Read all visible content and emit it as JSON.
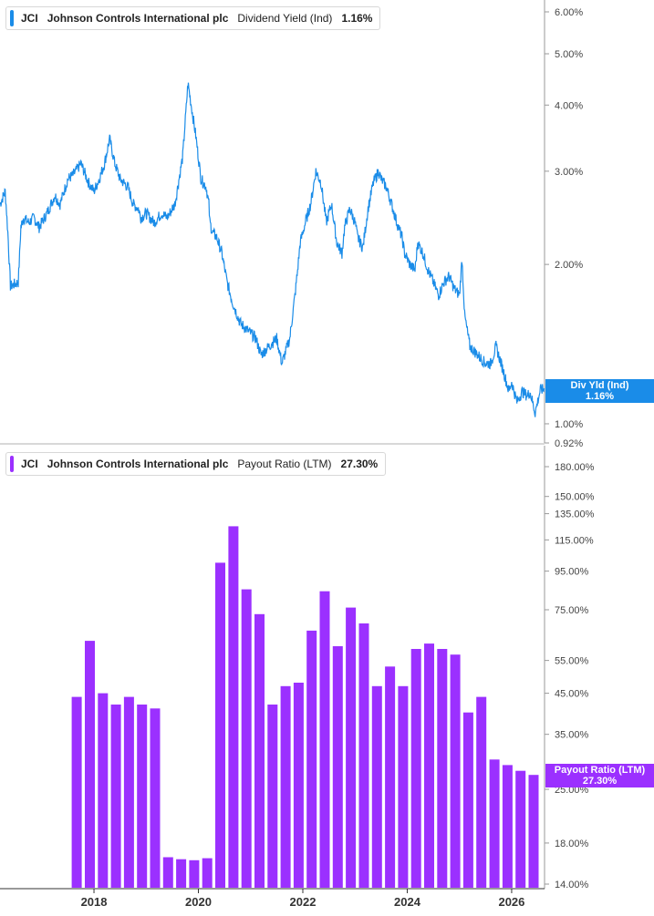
{
  "colors": {
    "line": "#1a8ce8",
    "bar": "#9b30ff",
    "badge_yield": "#1a8ce8",
    "badge_payout": "#9b30ff",
    "axis": "#999999",
    "frame": "#b0b0b0"
  },
  "top_legend": {
    "ticker": "JCI",
    "company": "Johnson Controls International plc",
    "metric": "Dividend Yield (Ind)",
    "value": "1.16%"
  },
  "bottom_legend": {
    "ticker": "JCI",
    "company": "Johnson Controls International plc",
    "metric": "Payout Ratio (LTM)",
    "value": "27.30%"
  },
  "top_badge": {
    "label": "Div Yld (Ind)",
    "value": "1.16%"
  },
  "bottom_badge": {
    "label": "Payout Ratio (LTM)",
    "value": "27.30%"
  },
  "chart_data": [
    {
      "type": "line",
      "series_name": "Dividend Yield (Ind)",
      "scale": "log",
      "x_range": [
        2016.2,
        2026.63
      ],
      "y_range": [
        0.92,
        6.5
      ],
      "y_ticks": [
        6.0,
        5.0,
        4.0,
        3.0,
        2.0,
        1.0,
        0.92
      ],
      "y_tick_labels": [
        "6.00%",
        "5.00%",
        "4.00%",
        "3.00%",
        "2.00%",
        "1.00%",
        "0.92%"
      ],
      "x": [
        2016.2,
        2016.3,
        2016.35,
        2016.4,
        2016.55,
        2016.6,
        2016.65,
        2016.75,
        2016.85,
        2016.95,
        2017.1,
        2017.25,
        2017.35,
        2017.5,
        2017.6,
        2017.75,
        2017.9,
        2018.0,
        2018.1,
        2018.2,
        2018.3,
        2018.4,
        2018.5,
        2018.65,
        2018.75,
        2018.85,
        2018.9,
        2019.0,
        2019.15,
        2019.3,
        2019.4,
        2019.55,
        2019.7,
        2019.8,
        2019.95,
        2020.05,
        2020.15,
        2020.2,
        2020.22,
        2020.27,
        2020.35,
        2020.45,
        2020.55,
        2020.65,
        2020.8,
        2020.95,
        2021.1,
        2021.2,
        2021.35,
        2021.5,
        2021.6,
        2021.75,
        2021.85,
        2021.9,
        2021.95,
        2022.05,
        2022.15,
        2022.25,
        2022.35,
        2022.45,
        2022.5,
        2022.55,
        2022.65,
        2022.75,
        2022.8,
        2022.9,
        2023.0,
        2023.05,
        2023.15,
        2023.25,
        2023.35,
        2023.45,
        2023.5,
        2023.6,
        2023.7,
        2023.8,
        2023.9,
        2023.95,
        2024.05,
        2024.15,
        2024.2,
        2024.3,
        2024.4,
        2024.5,
        2024.6,
        2024.7,
        2024.8,
        2024.9,
        2025.0,
        2025.05,
        2025.1,
        2025.2,
        2025.35,
        2025.5,
        2025.6,
        2025.7,
        2025.85,
        2025.95,
        2026.0,
        2026.1,
        2026.2,
        2026.3,
        2026.35,
        2026.45,
        2026.55,
        2026.63
      ],
      "y": [
        2.6,
        2.75,
        2.3,
        1.82,
        1.85,
        2.35,
        2.45,
        2.4,
        2.45,
        2.35,
        2.5,
        2.7,
        2.6,
        2.9,
        2.95,
        3.1,
        2.85,
        2.75,
        2.9,
        3.1,
        3.45,
        3.1,
        2.9,
        2.8,
        2.6,
        2.55,
        2.45,
        2.5,
        2.4,
        2.5,
        2.45,
        2.6,
        3.2,
        4.4,
        3.5,
        2.9,
        2.8,
        2.6,
        2.4,
        2.3,
        2.25,
        2.1,
        1.85,
        1.7,
        1.55,
        1.5,
        1.45,
        1.35,
        1.4,
        1.45,
        1.3,
        1.45,
        1.75,
        1.95,
        2.2,
        2.4,
        2.6,
        3.0,
        2.85,
        2.4,
        2.5,
        2.6,
        2.2,
        2.1,
        2.35,
        2.55,
        2.4,
        2.25,
        2.15,
        2.55,
        2.85,
        3.0,
        2.9,
        2.8,
        2.6,
        2.4,
        2.25,
        2.1,
        2.0,
        1.95,
        2.2,
        2.1,
        1.95,
        1.85,
        1.75,
        1.85,
        1.9,
        1.8,
        1.75,
        2.05,
        1.6,
        1.4,
        1.35,
        1.3,
        1.3,
        1.4,
        1.25,
        1.15,
        1.2,
        1.1,
        1.15,
        1.13,
        1.15,
        1.05,
        1.16,
        1.16
      ]
    },
    {
      "type": "bar",
      "series_name": "Payout Ratio (LTM)",
      "scale": "log",
      "x_range": [
        2016.2,
        2026.63
      ],
      "y_range": [
        13.9,
        200
      ],
      "y_ticks": [
        180,
        150,
        135,
        115,
        95,
        75,
        55,
        45,
        35,
        25,
        18,
        14
      ],
      "y_tick_labels": [
        "180.00%",
        "150.00%",
        "135.00%",
        "115.00%",
        "95.00%",
        "75.00%",
        "55.00%",
        "45.00%",
        "35.00%",
        "25.00%",
        "18.00%",
        "14.00%"
      ],
      "x_tick_labels": [
        "2018",
        "2020",
        "2022",
        "2024",
        "2026"
      ],
      "x_tick_values": [
        2018.0,
        2020.0,
        2022.0,
        2024.0,
        2026.0
      ],
      "x": [
        2017.67,
        2017.92,
        2018.17,
        2018.42,
        2018.67,
        2018.92,
        2019.17,
        2019.42,
        2019.67,
        2019.92,
        2020.17,
        2020.42,
        2020.67,
        2020.92,
        2021.17,
        2021.42,
        2021.67,
        2021.92,
        2022.17,
        2022.42,
        2022.67,
        2022.92,
        2023.17,
        2023.42,
        2023.67,
        2023.92,
        2024.17,
        2024.42,
        2024.67,
        2024.92,
        2025.17,
        2025.42,
        2025.67,
        2025.92,
        2026.17,
        2026.42
      ],
      "values": [
        44,
        62,
        45,
        42,
        44,
        42,
        41,
        16.5,
        16.3,
        16.2,
        16.4,
        100,
        125,
        85,
        73,
        42,
        47,
        48,
        66,
        84,
        60,
        76,
        69,
        47,
        53,
        47,
        59,
        61,
        59,
        57,
        40,
        44,
        30,
        29,
        28,
        27.3
      ]
    }
  ]
}
